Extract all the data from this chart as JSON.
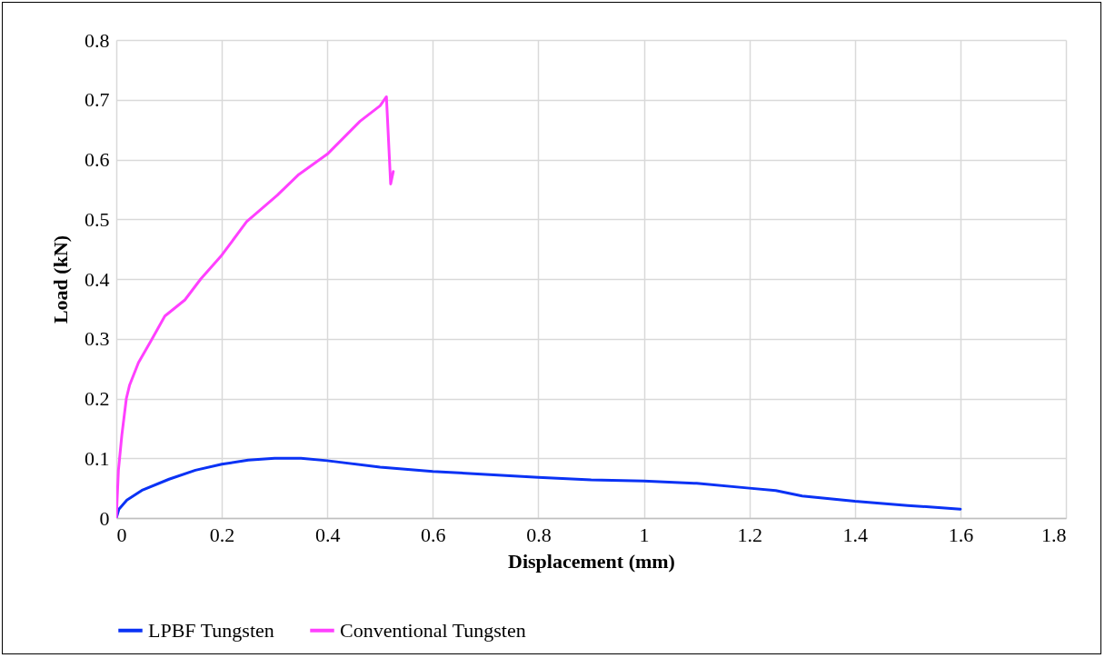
{
  "chart_data": {
    "type": "line",
    "xlabel": "Displacement (mm)",
    "ylabel": "Load (kN)",
    "xlim": [
      0,
      1.8
    ],
    "xticks": [
      0,
      0.2,
      0.4,
      0.6,
      0.8,
      1,
      1.2,
      1.4,
      1.6,
      1.8
    ],
    "ylim": [
      0,
      0.8
    ],
    "yticks": [
      0,
      0.1,
      0.2,
      0.3,
      0.4,
      0.5,
      0.6,
      0.7,
      0.8
    ],
    "grid": true,
    "legend": "bottom",
    "marker": "none",
    "line_style": "solid",
    "series": [
      {
        "name": "LPBF Tungsten",
        "color": "#0a32f5",
        "x": [
          0,
          0.005,
          0.02,
          0.05,
          0.1,
          0.15,
          0.2,
          0.25,
          0.3,
          0.35,
          0.4,
          0.5,
          0.6,
          0.7,
          0.8,
          0.9,
          1.0,
          1.1,
          1.2,
          1.25,
          1.3,
          1.4,
          1.5,
          1.6
        ],
        "values": [
          0,
          0.015,
          0.03,
          0.047,
          0.065,
          0.08,
          0.09,
          0.097,
          0.1,
          0.1,
          0.096,
          0.085,
          0.078,
          0.073,
          0.068,
          0.064,
          0.062,
          0.058,
          0.05,
          0.046,
          0.037,
          0.028,
          0.021,
          0.015
        ]
      },
      {
        "name": "Conventional Tungsten",
        "color": "#ff40ff",
        "x": [
          0,
          0.004,
          0.0105,
          0.019,
          0.025,
          0.042,
          0.066,
          0.092,
          0.13,
          0.16,
          0.2,
          0.247,
          0.305,
          0.346,
          0.4,
          0.462,
          0.5,
          0.512,
          0.52,
          0.525
        ],
        "values": [
          0,
          0.08,
          0.139,
          0.2,
          0.222,
          0.26,
          0.297,
          0.338,
          0.365,
          0.4,
          0.44,
          0.496,
          0.54,
          0.575,
          0.609,
          0.664,
          0.69,
          0.705,
          0.559,
          0.58
        ]
      }
    ]
  }
}
